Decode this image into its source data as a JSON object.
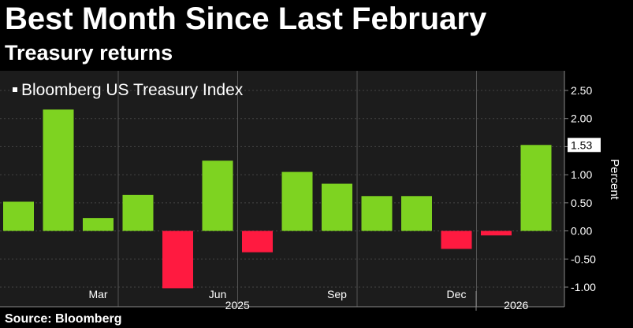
{
  "title": "Best Month Since Last February",
  "subtitle": "Treasury returns",
  "source": "Source: Bloomberg",
  "colors": {
    "positive": "#7ED321",
    "negative": "#FF1A40",
    "plot_bg": "#1C1C1C",
    "grid": "#444444"
  },
  "chart_data": {
    "type": "bar",
    "legend": "Bloomberg US Treasury Index",
    "legend_position": "top-left",
    "ylabel": "Percent",
    "ylim": [
      -1.35,
      2.85
    ],
    "yticks": [
      2.5,
      2.0,
      1.5,
      1.0,
      0.5,
      0.0,
      -0.5,
      -1.0
    ],
    "ytick_labels": [
      "2.50",
      "2.00",
      "1.50",
      "1.00",
      "0.50",
      "0.00",
      "-0.50",
      "-1.00"
    ],
    "grid": true,
    "categories": [
      "2025-01",
      "2025-02",
      "2025-03",
      "2025-04",
      "2025-05",
      "2025-06",
      "2025-07",
      "2025-08",
      "2025-09",
      "2025-10",
      "2025-11",
      "2025-12",
      "2026-01",
      "2026-02"
    ],
    "values": [
      0.52,
      2.16,
      0.23,
      0.64,
      -1.02,
      1.25,
      -0.38,
      1.05,
      0.84,
      0.62,
      0.62,
      -0.32,
      -0.08,
      1.53
    ],
    "last_value_label": "1.53",
    "xtick_labels": [
      {
        "label": "Mar",
        "index": 2
      },
      {
        "label": "Jun",
        "index": 5
      },
      {
        "label": "Sep",
        "index": 8
      },
      {
        "label": "Dec",
        "index": 11
      }
    ],
    "year_labels": [
      {
        "label": "2025",
        "from": 0,
        "to": 11
      },
      {
        "label": "2026",
        "from": 12,
        "to": 13
      }
    ]
  }
}
